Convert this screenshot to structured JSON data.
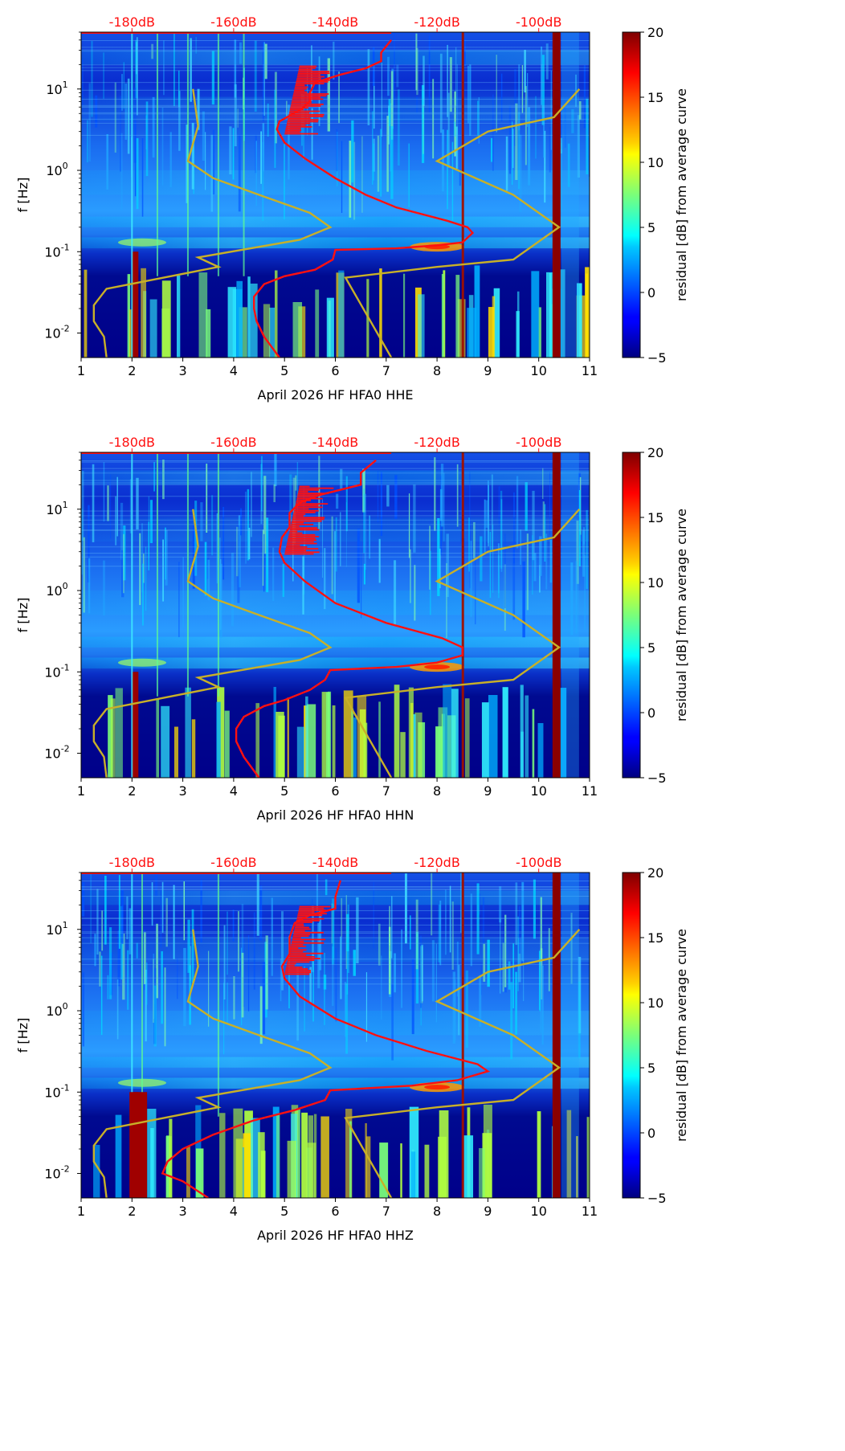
{
  "chart_data": [
    {
      "type": "heatmap",
      "title": "April 2026 HF HFA0  HHE",
      "channel": "HHE",
      "xlabel": "April 2026 HF HFA0  HHE",
      "ylabel": "f [Hz]",
      "xlim": [
        1,
        11
      ],
      "ylim": [
        0.005,
        50
      ],
      "yscale": "log",
      "x_ticks": [
        "1",
        "2",
        "3",
        "4",
        "5",
        "6",
        "7",
        "8",
        "9",
        "10",
        "11"
      ],
      "y_ticks": [
        "10^-2",
        "10^-1",
        "10^0",
        "10^1"
      ],
      "top_axis_labels": [
        "-180dB",
        "-160dB",
        "-140dB",
        "-120dB",
        "-100dB"
      ],
      "top_axis_positions": [
        2,
        4,
        6,
        8,
        10
      ],
      "colorbar": {
        "label": "residual [dB] from average curve",
        "min": -5,
        "max": 20,
        "ticks": [
          "−5",
          "0",
          "5",
          "10",
          "15",
          "20"
        ]
      },
      "vertical_events": [
        2.0,
        2.5,
        3.1,
        3.7,
        4.2,
        8.5,
        10.35
      ],
      "average_curve": {
        "color": "#ff1010",
        "points": [
          [
            4.9,
            0.005
          ],
          [
            4.6,
            0.009
          ],
          [
            4.45,
            0.014
          ],
          [
            4.4,
            0.02
          ],
          [
            4.4,
            0.028
          ],
          [
            4.6,
            0.04
          ],
          [
            5.0,
            0.05
          ],
          [
            5.6,
            0.06
          ],
          [
            5.95,
            0.08
          ],
          [
            6.0,
            0.105
          ],
          [
            7.2,
            0.11
          ],
          [
            8.0,
            0.12
          ],
          [
            8.5,
            0.13
          ],
          [
            8.7,
            0.17
          ],
          [
            8.6,
            0.2
          ],
          [
            8.2,
            0.24
          ],
          [
            7.2,
            0.35
          ],
          [
            6.6,
            0.5
          ],
          [
            6.0,
            0.8
          ],
          [
            5.4,
            1.4
          ],
          [
            5.0,
            2.2
          ],
          [
            4.85,
            3.2
          ],
          [
            4.9,
            4.0
          ],
          [
            5.3,
            5.5
          ],
          [
            5.5,
            7
          ],
          [
            5.5,
            9
          ],
          [
            5.6,
            12
          ],
          [
            6.1,
            15
          ],
          [
            6.6,
            18
          ],
          [
            6.9,
            22
          ],
          [
            6.9,
            28
          ],
          [
            7.1,
            40
          ]
        ]
      },
      "model_curve": {
        "color": "#c8b028",
        "segments": [
          [
            [
              3.2,
              10
            ],
            [
              3.3,
              3.5
            ],
            [
              3.1,
              1.3
            ],
            [
              3.6,
              0.8
            ],
            [
              4.5,
              0.5
            ],
            [
              5.5,
              0.3
            ],
            [
              5.9,
              0.2
            ],
            [
              5.3,
              0.14
            ],
            [
              3.3,
              0.085
            ],
            [
              3.7,
              0.065
            ],
            [
              1.5,
              0.035
            ],
            [
              1.25,
              0.022
            ],
            [
              1.25,
              0.014
            ],
            [
              1.45,
              0.009
            ],
            [
              1.5,
              0.005
            ]
          ],
          [
            [
              10.8,
              10
            ],
            [
              10.3,
              4.5
            ],
            [
              9.0,
              3.0
            ],
            [
              8.0,
              1.3
            ],
            [
              9.5,
              0.5
            ],
            [
              10.4,
              0.2
            ],
            [
              9.5,
              0.08
            ],
            [
              8.0,
              0.065
            ],
            [
              6.2,
              0.048
            ],
            [
              7.1,
              0.005
            ]
          ]
        ]
      }
    },
    {
      "type": "heatmap",
      "title": "April 2026 HF HFA0  HHN",
      "channel": "HHN",
      "xlabel": "April 2026 HF HFA0  HHN",
      "ylabel": "f [Hz]",
      "xlim": [
        1,
        11
      ],
      "ylim": [
        0.005,
        50
      ],
      "yscale": "log",
      "x_ticks": [
        "1",
        "2",
        "3",
        "4",
        "5",
        "6",
        "7",
        "8",
        "9",
        "10",
        "11"
      ],
      "y_ticks": [
        "10^-2",
        "10^-1",
        "10^0",
        "10^1"
      ],
      "top_axis_labels": [
        "-180dB",
        "-160dB",
        "-140dB",
        "-120dB",
        "-100dB"
      ],
      "top_axis_positions": [
        2,
        4,
        6,
        8,
        10
      ],
      "colorbar": {
        "label": "residual [dB] from average curve",
        "min": -5,
        "max": 20,
        "ticks": [
          "−5",
          "0",
          "5",
          "10",
          "15",
          "20"
        ]
      },
      "vertical_events": [
        2.0,
        2.5,
        3.1,
        3.7,
        8.5,
        10.35
      ],
      "average_curve": {
        "color": "#ff1010",
        "points": [
          [
            4.5,
            0.005
          ],
          [
            4.2,
            0.009
          ],
          [
            4.05,
            0.014
          ],
          [
            4.05,
            0.02
          ],
          [
            4.2,
            0.028
          ],
          [
            4.6,
            0.038
          ],
          [
            5.0,
            0.045
          ],
          [
            5.5,
            0.06
          ],
          [
            5.8,
            0.08
          ],
          [
            5.9,
            0.105
          ],
          [
            7.2,
            0.115
          ],
          [
            8.0,
            0.13
          ],
          [
            8.5,
            0.16
          ],
          [
            8.5,
            0.2
          ],
          [
            8.1,
            0.26
          ],
          [
            7.0,
            0.4
          ],
          [
            6.0,
            0.7
          ],
          [
            5.4,
            1.3
          ],
          [
            5.0,
            2.2
          ],
          [
            4.9,
            3.0
          ],
          [
            4.95,
            4.5
          ],
          [
            5.1,
            6
          ],
          [
            5.1,
            9
          ],
          [
            5.3,
            12
          ],
          [
            5.7,
            15
          ],
          [
            6.5,
            20
          ],
          [
            6.5,
            28
          ],
          [
            6.8,
            40
          ]
        ]
      },
      "model_curve": {
        "color": "#c8b028",
        "segments": [
          [
            [
              3.2,
              10
            ],
            [
              3.3,
              3.5
            ],
            [
              3.1,
              1.3
            ],
            [
              3.6,
              0.8
            ],
            [
              4.5,
              0.5
            ],
            [
              5.5,
              0.3
            ],
            [
              5.9,
              0.2
            ],
            [
              5.3,
              0.14
            ],
            [
              3.3,
              0.085
            ],
            [
              3.7,
              0.065
            ],
            [
              1.5,
              0.035
            ],
            [
              1.25,
              0.022
            ],
            [
              1.25,
              0.014
            ],
            [
              1.45,
              0.009
            ],
            [
              1.5,
              0.005
            ]
          ],
          [
            [
              10.8,
              10
            ],
            [
              10.3,
              4.5
            ],
            [
              9.0,
              3.0
            ],
            [
              8.0,
              1.3
            ],
            [
              9.5,
              0.5
            ],
            [
              10.4,
              0.2
            ],
            [
              9.5,
              0.08
            ],
            [
              8.0,
              0.065
            ],
            [
              6.2,
              0.048
            ],
            [
              7.1,
              0.005
            ]
          ]
        ]
      }
    },
    {
      "type": "heatmap",
      "title": "April 2026 HF HFA0  HHZ",
      "channel": "HHZ",
      "xlabel": "April 2026 HF HFA0  HHZ",
      "ylabel": "f [Hz]",
      "xlim": [
        1,
        11
      ],
      "ylim": [
        0.005,
        50
      ],
      "yscale": "log",
      "x_ticks": [
        "1",
        "2",
        "3",
        "4",
        "5",
        "6",
        "7",
        "8",
        "9",
        "10",
        "11"
      ],
      "y_ticks": [
        "10^-2",
        "10^-1",
        "10^0",
        "10^1"
      ],
      "top_axis_labels": [
        "-180dB",
        "-160dB",
        "-140dB",
        "-120dB",
        "-100dB"
      ],
      "top_axis_positions": [
        2,
        4,
        6,
        8,
        10
      ],
      "colorbar": {
        "label": "residual [dB] from average curve",
        "min": -5,
        "max": 20,
        "ticks": [
          "−5",
          "0",
          "5",
          "10",
          "15",
          "20"
        ]
      },
      "vertical_events": [
        2.0,
        2.2,
        3.7,
        8.5,
        10.35
      ],
      "average_curve": {
        "color": "#ff1010",
        "points": [
          [
            3.5,
            0.005
          ],
          [
            3.0,
            0.008
          ],
          [
            2.6,
            0.01
          ],
          [
            2.7,
            0.014
          ],
          [
            3.0,
            0.02
          ],
          [
            3.6,
            0.03
          ],
          [
            4.4,
            0.045
          ],
          [
            5.2,
            0.06
          ],
          [
            5.8,
            0.08
          ],
          [
            5.9,
            0.105
          ],
          [
            7.5,
            0.12
          ],
          [
            8.4,
            0.14
          ],
          [
            9.0,
            0.18
          ],
          [
            8.8,
            0.22
          ],
          [
            7.8,
            0.32
          ],
          [
            6.8,
            0.5
          ],
          [
            6.0,
            0.8
          ],
          [
            5.3,
            1.5
          ],
          [
            5.0,
            2.5
          ],
          [
            4.95,
            3.5
          ],
          [
            5.1,
            5
          ],
          [
            5.1,
            8
          ],
          [
            5.2,
            12
          ],
          [
            5.5,
            15
          ],
          [
            6.0,
            18
          ],
          [
            6.0,
            25
          ],
          [
            6.1,
            40
          ]
        ]
      },
      "model_curve": {
        "color": "#c8b028",
        "segments": [
          [
            [
              3.2,
              10
            ],
            [
              3.3,
              3.5
            ],
            [
              3.1,
              1.3
            ],
            [
              3.6,
              0.8
            ],
            [
              4.5,
              0.5
            ],
            [
              5.5,
              0.3
            ],
            [
              5.9,
              0.2
            ],
            [
              5.3,
              0.14
            ],
            [
              3.3,
              0.085
            ],
            [
              3.7,
              0.065
            ],
            [
              1.5,
              0.035
            ],
            [
              1.25,
              0.022
            ],
            [
              1.25,
              0.014
            ],
            [
              1.45,
              0.009
            ],
            [
              1.5,
              0.005
            ]
          ],
          [
            [
              10.8,
              10
            ],
            [
              10.3,
              4.5
            ],
            [
              9.0,
              3.0
            ],
            [
              8.0,
              1.3
            ],
            [
              9.5,
              0.5
            ],
            [
              10.4,
              0.2
            ],
            [
              9.5,
              0.08
            ],
            [
              8.0,
              0.065
            ],
            [
              6.2,
              0.048
            ],
            [
              7.1,
              0.005
            ]
          ]
        ]
      }
    }
  ]
}
